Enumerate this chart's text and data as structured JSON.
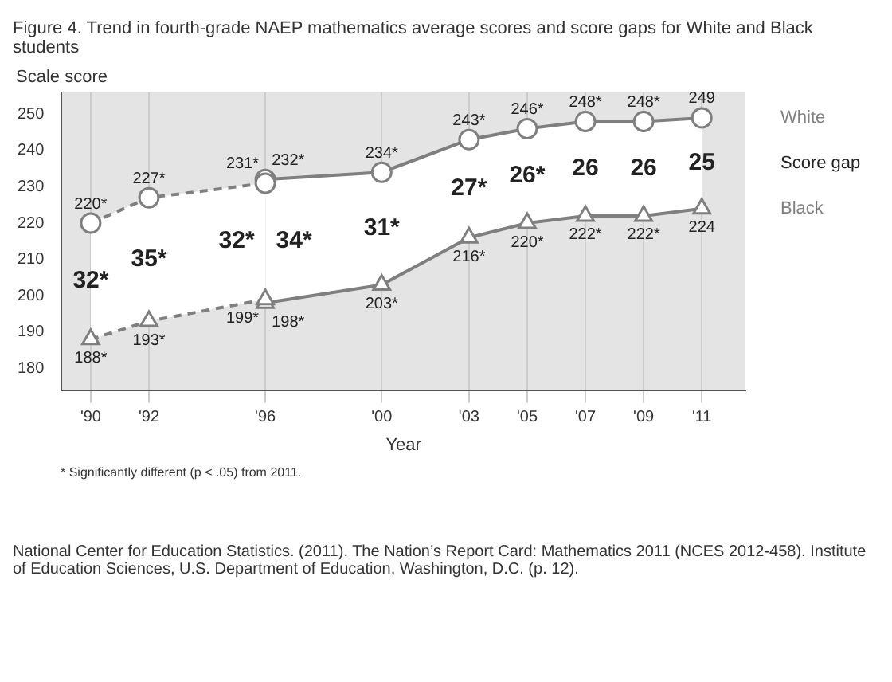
{
  "chart_data": {
    "type": "line",
    "title": "Figure 4.  Trend in fourth-grade NAEP mathematics average scores and score gaps for White and Black students",
    "ylabel": "Scale score",
    "xlabel": "Year",
    "legend": "right",
    "legend_title": "Score gap",
    "grid": "x",
    "line_style": "solid",
    "xlim": [
      1989,
      2012.5
    ],
    "xticks": [
      {
        "value": 1990,
        "label": "'90"
      },
      {
        "value": 1992,
        "label": "'92"
      },
      {
        "value": 1996,
        "label": "'96"
      },
      {
        "value": 2000,
        "label": "'00"
      },
      {
        "value": 2003,
        "label": "'03"
      },
      {
        "value": 2005,
        "label": "'05"
      },
      {
        "value": 2007,
        "label": "'07"
      },
      {
        "value": 2009,
        "label": "'09"
      },
      {
        "value": 2011,
        "label": "'11"
      }
    ],
    "ylim": [
      174,
      256
    ],
    "yticks": [
      180,
      190,
      200,
      210,
      220,
      230,
      240,
      250
    ],
    "series": [
      {
        "color": "#7f7f7f",
        "line_style": "dashed",
        "marker": "circle",
        "x": [
          1990,
          1992,
          1996
        ],
        "values": [
          220,
          227,
          231
        ],
        "value_labels": [
          "220*",
          "227*",
          "231*"
        ]
      },
      {
        "name": "White",
        "color": "#7f7f7f",
        "marker": "circle",
        "x": [
          1996,
          2000,
          2003,
          2005,
          2007,
          2009,
          2011
        ],
        "values": [
          232,
          234,
          243,
          246,
          248,
          248,
          249
        ],
        "value_labels": [
          "232*",
          "234*",
          "243*",
          "246*",
          "248*",
          "248*",
          "249"
        ]
      },
      {
        "color": "#7f7f7f",
        "line_style": "dashed",
        "marker": "triangle",
        "x": [
          1990,
          1992,
          1996
        ],
        "values": [
          188,
          193,
          199
        ],
        "value_labels": [
          "188*",
          "193*",
          "199*"
        ]
      },
      {
        "name": "Black",
        "color": "#7f7f7f",
        "marker": "triangle",
        "x": [
          1996,
          2000,
          2003,
          2005,
          2007,
          2009,
          2011
        ],
        "values": [
          198,
          203,
          216,
          220,
          222,
          222,
          224
        ],
        "value_labels": [
          "198*",
          "203*",
          "216*",
          "220*",
          "222*",
          "222*",
          "224"
        ]
      }
    ],
    "annotations": [
      "32*",
      "35*",
      "32*",
      "34*",
      "31*",
      "27*",
      "26*",
      "26",
      "26",
      "25",
      "* Significantly different (p < .05) from 2011.",
      "National Center for Education Statistics.  (2011). The Nation’s Report Card: Mathematics 2011 (NCES 2012-458). Institute of Education Sciences, U.S. Department of Education, Washington, D.C. (p. 12)."
    ]
  }
}
